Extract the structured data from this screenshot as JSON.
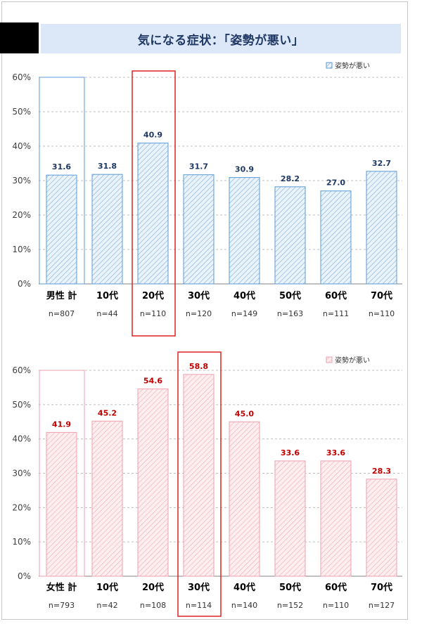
{
  "title": "気になる症状：「姿勢が悪い」",
  "colors": {
    "male_fill": "#eaf2fa",
    "male_hatch": "#7fb0dc",
    "male_stroke": "#5b9bd5",
    "male_label": "#1f3864",
    "female_fill": "#fdeef0",
    "female_hatch": "#f4aab6",
    "female_stroke": "#eea0ad",
    "female_label": "#c00000",
    "highlight": "#e02020",
    "grid": "#bfbfbf",
    "axis_text": "#404040"
  },
  "chart_data": [
    {
      "type": "bar",
      "group": "male",
      "legend": "姿勢が悪い",
      "categories": [
        "男性 計",
        "10代",
        "20代",
        "30代",
        "40代",
        "50代",
        "60代",
        "70代"
      ],
      "sample_sizes": [
        "n=807",
        "n=44",
        "n=110",
        "n=120",
        "n=149",
        "n=163",
        "n=111",
        "n=110"
      ],
      "values": [
        31.6,
        31.8,
        40.9,
        31.7,
        30.9,
        28.2,
        27.0,
        32.7
      ],
      "value_labels": [
        "31.6",
        "31.8",
        "40.9",
        "31.7",
        "30.9",
        "28.2",
        "27.0",
        "32.7"
      ],
      "yticks": [
        "0%",
        "10%",
        "20%",
        "30%",
        "40%",
        "50%",
        "60%"
      ],
      "ylim": [
        0,
        60
      ],
      "highlight_index": 2,
      "total_index": 0,
      "legend_position": "top-right",
      "grid": true
    },
    {
      "type": "bar",
      "group": "female",
      "legend": "姿勢が悪い",
      "categories": [
        "女性 計",
        "10代",
        "20代",
        "30代",
        "40代",
        "50代",
        "60代",
        "70代"
      ],
      "sample_sizes": [
        "n=793",
        "n=42",
        "n=108",
        "n=114",
        "n=140",
        "n=152",
        "n=110",
        "n=127"
      ],
      "values": [
        41.9,
        45.2,
        54.6,
        58.8,
        45.0,
        33.6,
        33.6,
        28.3
      ],
      "value_labels": [
        "41.9",
        "45.2",
        "54.6",
        "58.8",
        "45.0",
        "33.6",
        "33.6",
        "28.3"
      ],
      "yticks": [
        "0%",
        "10%",
        "20%",
        "30%",
        "40%",
        "50%",
        "60%"
      ],
      "ylim": [
        0,
        60
      ],
      "highlight_index": 3,
      "total_index": 0,
      "legend_position": "top-right",
      "grid": true
    }
  ]
}
